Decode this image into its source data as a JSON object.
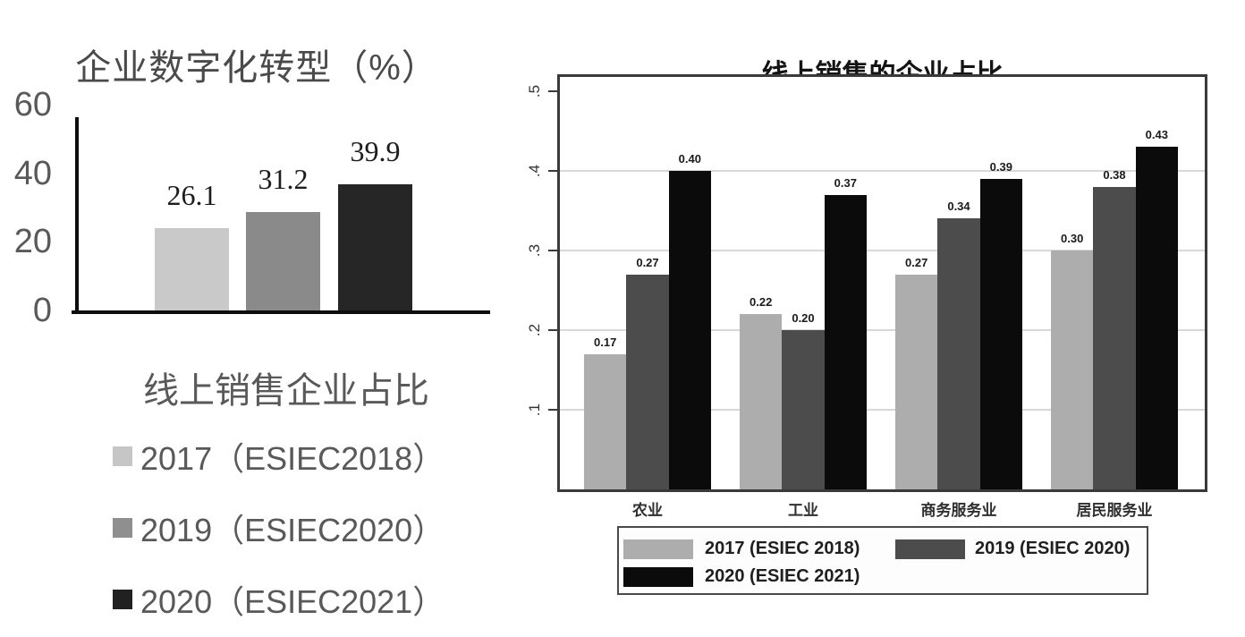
{
  "chart_data": [
    {
      "id": "enterprise-digital-transformation",
      "type": "bar",
      "title": "企业数字化转型（%）",
      "xlabel": "",
      "ylabel": "",
      "ylim": [
        0,
        60
      ],
      "y_ticks": [
        0,
        20,
        40,
        60
      ],
      "y_tick_labels": [
        "0",
        "20",
        "40",
        "60"
      ],
      "grid": false,
      "categories": [
        "2017（ESIEC2018）",
        "2019（ESIEC2020）",
        "2020（ESIEC2021）"
      ],
      "values": [
        26.1,
        31.2,
        39.9
      ],
      "value_labels": [
        "26.1",
        "31.2",
        "39.9"
      ],
      "bar_colors": [
        "#c9c9c9",
        "#8a8a8a",
        "#262626"
      ],
      "legend_position": "below-vertical",
      "legend_title": "线上销售企业占比",
      "legend": [
        {
          "label": "2017（ESIEC2018）",
          "color": "#c6c6c6"
        },
        {
          "label": "2019（ESIEC2020）",
          "color": "#8f8f8f"
        },
        {
          "label": "2020（ESIEC2021）",
          "color": "#212121"
        }
      ],
      "axis_color": "#0d0d0d",
      "text_color": "#595959",
      "title_color": "#4a4a4a"
    },
    {
      "id": "online-sales-enterprise-share",
      "type": "bar",
      "title": "线上销售的企业占比",
      "xlabel": "",
      "ylabel": "",
      "ylim": [
        0,
        0.52
      ],
      "y_ticks": [
        0.1,
        0.2,
        0.3,
        0.4,
        0.5
      ],
      "y_tick_labels": [
        ".1",
        ".2",
        ".3",
        ".4",
        ".5"
      ],
      "grid": true,
      "grid_color": "#d8d8d8",
      "categories": [
        "农业",
        "工业",
        "商务服务业",
        "居民服务业"
      ],
      "series": [
        {
          "name": "2017 (ESIEC 2018)",
          "color": "#adadad",
          "values": [
            0.17,
            0.22,
            0.27,
            0.3
          ],
          "value_labels": [
            "0.17",
            "0.22",
            "0.27",
            "0.30"
          ]
        },
        {
          "name": "2019 (ESIEC 2020)",
          "color": "#4c4c4c",
          "values": [
            0.27,
            0.2,
            0.34,
            0.38
          ],
          "value_labels": [
            "0.27",
            "0.20",
            "0.34",
            "0.38"
          ]
        },
        {
          "name": "2020 (ESIEC 2021)",
          "color": "#0b0b0b",
          "values": [
            0.4,
            0.37,
            0.39,
            0.43
          ],
          "value_labels": [
            "0.40",
            "0.37",
            "0.39",
            "0.43"
          ]
        }
      ],
      "legend_position": "bottom-box",
      "frame_color": "#3a3a3a",
      "text_color": "#2f2f2f",
      "title_color": "#141414"
    }
  ]
}
